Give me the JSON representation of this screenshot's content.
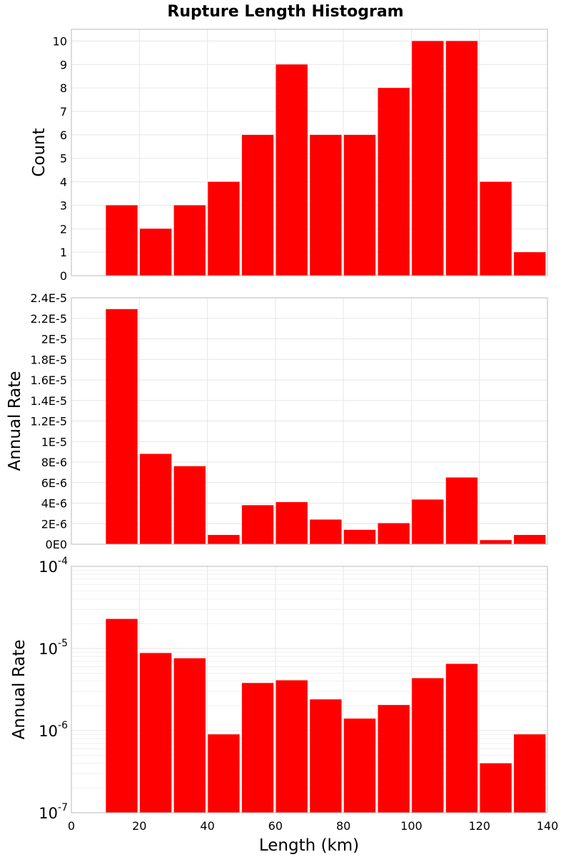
{
  "chart_data": {
    "title": "Rupture Length Histogram",
    "type": "bar",
    "bar_color": "#ff0000",
    "x": {
      "label": "Length (km)",
      "range": [
        0,
        140
      ],
      "ticks": [
        0,
        20,
        40,
        60,
        80,
        100,
        120,
        140
      ],
      "bin_width": 10
    },
    "bins": [
      10,
      20,
      30,
      40,
      50,
      60,
      70,
      80,
      90,
      100,
      110,
      120,
      130
    ],
    "panels": [
      {
        "ylabel": "Count",
        "scale": "linear",
        "ylim": [
          0,
          10.5
        ],
        "ticks": [
          0,
          1,
          2,
          3,
          4,
          5,
          6,
          7,
          8,
          9,
          10
        ],
        "tick_labels": [
          "0",
          "1",
          "2",
          "3",
          "4",
          "5",
          "6",
          "7",
          "8",
          "9",
          "10"
        ],
        "values": [
          3,
          2,
          3,
          4,
          6,
          9,
          6,
          6,
          8,
          10,
          10,
          4,
          1
        ]
      },
      {
        "ylabel": "Annual Rate",
        "scale": "linear",
        "ylim": [
          0,
          2.4e-05
        ],
        "ticks": [
          0,
          2e-06,
          4e-06,
          6e-06,
          8e-06,
          1e-05,
          1.2e-05,
          1.4e-05,
          1.6e-05,
          1.8e-05,
          2e-05,
          2.2e-05,
          2.4e-05
        ],
        "tick_labels": [
          "0E0",
          "2E-6",
          "4E-6",
          "6E-6",
          "8E-6",
          "1E-5",
          "1.2E-5",
          "1.4E-5",
          "1.6E-5",
          "1.8E-5",
          "2E-5",
          "2.2E-5",
          "2.4E-5"
        ],
        "values": [
          2.29e-05,
          8.8e-06,
          7.6e-06,
          9e-07,
          3.8e-06,
          4.1e-06,
          2.4e-06,
          1.4e-06,
          2.05e-06,
          4.35e-06,
          6.5e-06,
          4e-07,
          9e-07
        ]
      },
      {
        "ylabel": "Annual Rate",
        "scale": "log",
        "ylim": [
          1e-07,
          0.0001
        ],
        "ticks": [
          1e-07,
          1e-06,
          1e-05,
          0.0001
        ],
        "tick_labels": [
          {
            "base": "10",
            "exp": "-7"
          },
          {
            "base": "10",
            "exp": "-6"
          },
          {
            "base": "10",
            "exp": "-5"
          },
          {
            "base": "10",
            "exp": "-4"
          }
        ],
        "values": [
          2.29e-05,
          8.8e-06,
          7.6e-06,
          9e-07,
          3.8e-06,
          4.1e-06,
          2.4e-06,
          1.4e-06,
          2.05e-06,
          4.35e-06,
          6.5e-06,
          4e-07,
          9e-07
        ]
      }
    ]
  }
}
